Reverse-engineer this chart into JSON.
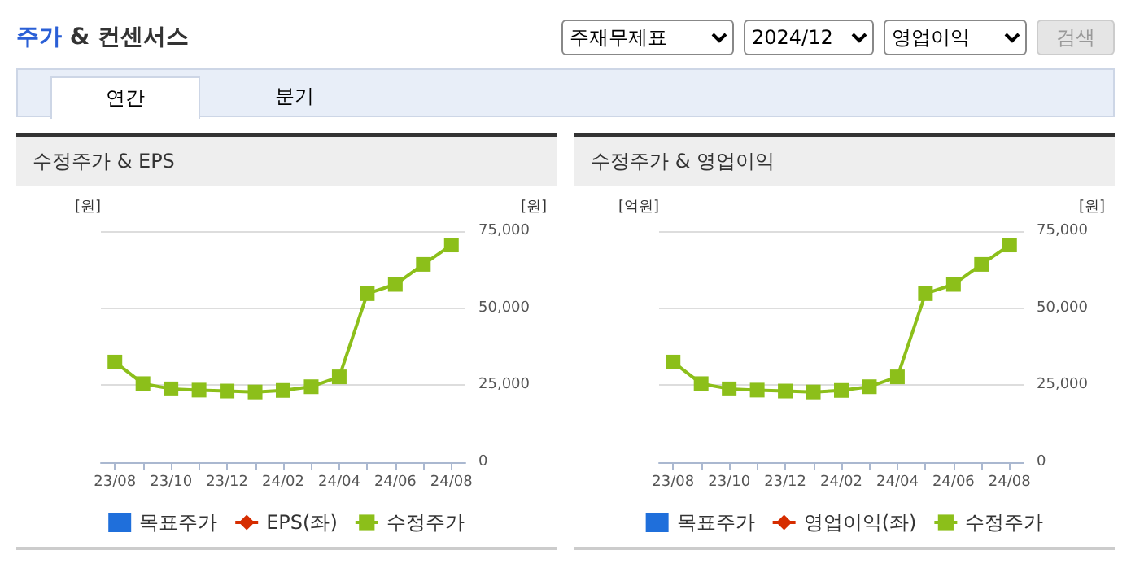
{
  "chart_data": [
    {
      "type": "other",
      "title": "주가 & 컨센서스",
      "annotations": [
        "주재무제표",
        "2024/12",
        "영업이익",
        "검색",
        "연간",
        "분기"
      ]
    },
    {
      "type": "line",
      "title": "수정주가 & EPS",
      "ylabel": "[원]",
      "y2label": "[원]",
      "categories": [
        "23/08",
        null,
        "23/10",
        null,
        "23/12",
        null,
        "24/02",
        null,
        "24/04",
        null,
        "24/06",
        null,
        "24/08"
      ],
      "series": [
        {
          "name": "목표주가",
          "type": "bar",
          "color": "#1f6fdb",
          "values": [
            null,
            null,
            null,
            null,
            null,
            null,
            null,
            null,
            null,
            null,
            null,
            null,
            null
          ]
        },
        {
          "name": "EPS(좌)",
          "type": "line",
          "marker": "diamond",
          "color": "#d62d00",
          "values": [
            null,
            null,
            null,
            null,
            null,
            null,
            null,
            null,
            null,
            null,
            null,
            null,
            null
          ]
        },
        {
          "name": "수정주가",
          "type": "line",
          "marker": "square",
          "axis": "y2",
          "color": "#8cbf1a",
          "values": [
            32500,
            25500,
            23800,
            23400,
            23100,
            22800,
            23300,
            24500,
            27700,
            54700,
            57700,
            64200,
            70500
          ]
        }
      ],
      "y2lim": [
        0,
        75000
      ],
      "y2ticks": [
        0,
        {
          "value": 25000,
          "label": "25,000"
        },
        {
          "value": 50000,
          "label": "50,000"
        },
        {
          "value": 75000,
          "label": "75,000"
        }
      ],
      "grid": "y",
      "legend": "bottom"
    },
    {
      "type": "line",
      "title": "수정주가 & 영업이익",
      "ylabel": "[억원]",
      "y2label": "[원]",
      "categories": [
        "23/08",
        null,
        "23/10",
        null,
        "23/12",
        null,
        "24/02",
        null,
        "24/04",
        null,
        "24/06",
        null,
        "24/08"
      ],
      "series": [
        {
          "name": "목표주가",
          "type": "bar",
          "color": "#1f6fdb",
          "values": [
            null,
            null,
            null,
            null,
            null,
            null,
            null,
            null,
            null,
            null,
            null,
            null,
            null
          ]
        },
        {
          "name": "영업이익(좌)",
          "type": "line",
          "marker": "diamond",
          "color": "#d62d00",
          "values": [
            null,
            null,
            null,
            null,
            null,
            null,
            null,
            null,
            null,
            null,
            null,
            null,
            null
          ]
        },
        {
          "name": "수정주가",
          "type": "line",
          "marker": "square",
          "axis": "y2",
          "color": "#8cbf1a",
          "values": [
            32500,
            25500,
            23800,
            23400,
            23100,
            22800,
            23300,
            24500,
            27700,
            54700,
            57700,
            64200,
            70500
          ]
        }
      ],
      "y2lim": [
        0,
        75000
      ],
      "y2ticks": [
        0,
        {
          "value": 25000,
          "label": "25,000"
        },
        {
          "value": 50000,
          "label": "50,000"
        },
        {
          "value": 75000,
          "label": "75,000"
        }
      ],
      "grid": "y",
      "legend": "bottom"
    }
  ]
}
